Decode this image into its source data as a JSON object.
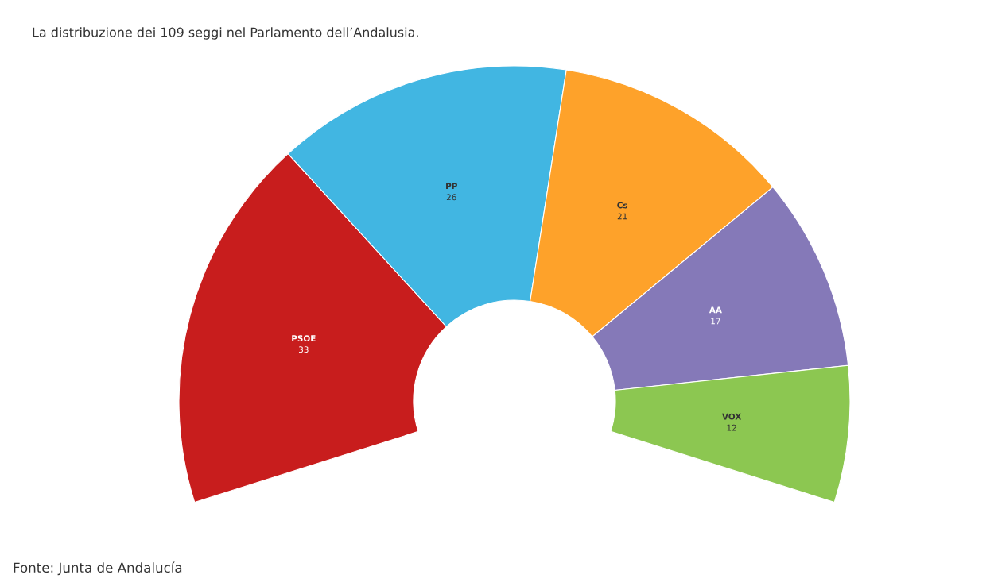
{
  "chart_data": {
    "type": "donut",
    "title": "La distribuzione dei 109 seggi nel Parlamento dell’Andalusia.",
    "categories": [
      "PSOE",
      "PP",
      "Cs",
      "AA",
      "VOX"
    ],
    "values": [
      33,
      26,
      21,
      17,
      12
    ],
    "colors": [
      "#c81d1d",
      "#41b6e2",
      "#fea22a",
      "#8579b8",
      "#8cc751"
    ],
    "data_labels": true,
    "annotations": [
      "Fonte: Junta de Andalucía"
    ]
  }
}
